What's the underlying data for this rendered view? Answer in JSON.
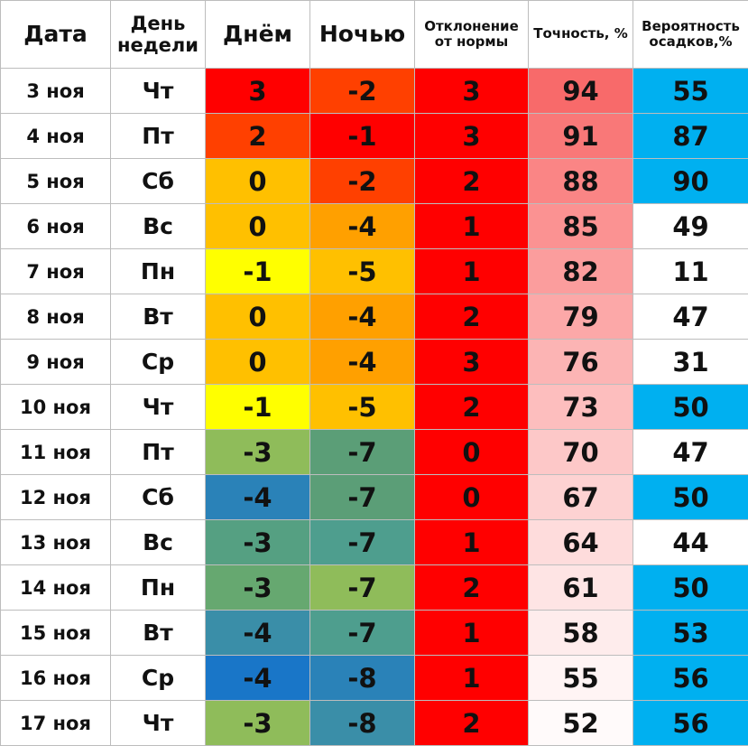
{
  "chart_data": {
    "type": "table",
    "columns": [
      "Дата",
      "День недели",
      "Днём",
      "Ночью",
      "Отклонение от нормы",
      "Точность, %",
      "Вероятность осадков,%"
    ],
    "rows": [
      {
        "date": "3 ноя",
        "day": "Чт",
        "day_temp": "3",
        "night_temp": "-2",
        "deviation": "3",
        "accuracy": "94",
        "precip": "55",
        "colors": {
          "day_temp": "#ff0000",
          "night_temp": "#ff4000",
          "deviation": "#ff0000",
          "accuracy": "#f86a6a",
          "precip": "#00b0f0"
        }
      },
      {
        "date": "4 ноя",
        "day": "Пт",
        "day_temp": "2",
        "night_temp": "-1",
        "deviation": "3",
        "accuracy": "91",
        "precip": "87",
        "colors": {
          "day_temp": "#ff4000",
          "night_temp": "#ff0000",
          "deviation": "#ff0000",
          "accuracy": "#f97878",
          "precip": "#00b0f0"
        }
      },
      {
        "date": "5 ноя",
        "day": "Сб",
        "day_temp": "0",
        "night_temp": "-2",
        "deviation": "2",
        "accuracy": "88",
        "precip": "90",
        "colors": {
          "day_temp": "#ffc000",
          "night_temp": "#ff4000",
          "deviation": "#ff0000",
          "accuracy": "#fa8585",
          "precip": "#00b0f0"
        }
      },
      {
        "date": "6 ноя",
        "day": "Вс",
        "day_temp": "0",
        "night_temp": "-4",
        "deviation": "1",
        "accuracy": "85",
        "precip": "49",
        "colors": {
          "day_temp": "#ffc000",
          "night_temp": "#ffa000",
          "deviation": "#ff0000",
          "accuracy": "#fb9292",
          "precip": "#ffffff"
        }
      },
      {
        "date": "7 ноя",
        "day": "Пн",
        "day_temp": "-1",
        "night_temp": "-5",
        "deviation": "1",
        "accuracy": "82",
        "precip": "11",
        "colors": {
          "day_temp": "#ffff00",
          "night_temp": "#ffc000",
          "deviation": "#ff0000",
          "accuracy": "#fb9d9d",
          "precip": "#ffffff"
        }
      },
      {
        "date": "8 ноя",
        "day": "Вт",
        "day_temp": "0",
        "night_temp": "-4",
        "deviation": "2",
        "accuracy": "79",
        "precip": "47",
        "colors": {
          "day_temp": "#ffc000",
          "night_temp": "#ffa000",
          "deviation": "#ff0000",
          "accuracy": "#fca8a8",
          "precip": "#ffffff"
        }
      },
      {
        "date": "9 ноя",
        "day": "Ср",
        "day_temp": "0",
        "night_temp": "-4",
        "deviation": "3",
        "accuracy": "76",
        "precip": "31",
        "colors": {
          "day_temp": "#ffc000",
          "night_temp": "#ffa000",
          "deviation": "#ff0000",
          "accuracy": "#fcb4b4",
          "precip": "#ffffff"
        }
      },
      {
        "date": "10 ноя",
        "day": "Чт",
        "day_temp": "-1",
        "night_temp": "-5",
        "deviation": "2",
        "accuracy": "73",
        "precip": "50",
        "colors": {
          "day_temp": "#ffff00",
          "night_temp": "#ffc000",
          "deviation": "#ff0000",
          "accuracy": "#fdbebe",
          "precip": "#00b0f0"
        }
      },
      {
        "date": "11 ноя",
        "day": "Пт",
        "day_temp": "-3",
        "night_temp": "-7",
        "deviation": "0",
        "accuracy": "70",
        "precip": "47",
        "colors": {
          "day_temp": "#8fbc5a",
          "night_temp": "#5b9e77",
          "deviation": "#ff0000",
          "accuracy": "#fdc8c8",
          "precip": "#ffffff"
        }
      },
      {
        "date": "12 ноя",
        "day": "Сб",
        "day_temp": "-4",
        "night_temp": "-7",
        "deviation": "0",
        "accuracy": "67",
        "precip": "50",
        "colors": {
          "day_temp": "#2a82b8",
          "night_temp": "#5b9e77",
          "deviation": "#ff0000",
          "accuracy": "#fdd2d2",
          "precip": "#00b0f0"
        }
      },
      {
        "date": "13 ноя",
        "day": "Вс",
        "day_temp": "-3",
        "night_temp": "-7",
        "deviation": "1",
        "accuracy": "64",
        "precip": "44",
        "colors": {
          "day_temp": "#55a082",
          "night_temp": "#4e9e8e",
          "deviation": "#ff0000",
          "accuracy": "#fedcdc",
          "precip": "#ffffff"
        }
      },
      {
        "date": "14 ноя",
        "day": "Пн",
        "day_temp": "-3",
        "night_temp": "-7",
        "deviation": "2",
        "accuracy": "61",
        "precip": "50",
        "colors": {
          "day_temp": "#66a870",
          "night_temp": "#8fbc5a",
          "deviation": "#ff0000",
          "accuracy": "#fee4e4",
          "precip": "#00b0f0"
        }
      },
      {
        "date": "15 ноя",
        "day": "Вт",
        "day_temp": "-4",
        "night_temp": "-7",
        "deviation": "1",
        "accuracy": "58",
        "precip": "53",
        "colors": {
          "day_temp": "#3a8ea8",
          "night_temp": "#4e9e8e",
          "deviation": "#ff0000",
          "accuracy": "#feecec",
          "precip": "#00b0f0"
        }
      },
      {
        "date": "16 ноя",
        "day": "Ср",
        "day_temp": "-4",
        "night_temp": "-8",
        "deviation": "1",
        "accuracy": "55",
        "precip": "56",
        "colors": {
          "day_temp": "#1976c8",
          "night_temp": "#2a82b8",
          "deviation": "#ff0000",
          "accuracy": "#fff4f4",
          "precip": "#00b0f0"
        }
      },
      {
        "date": "17 ноя",
        "day": "Чт",
        "day_temp": "-3",
        "night_temp": "-8",
        "deviation": "2",
        "accuracy": "52",
        "precip": "56",
        "colors": {
          "day_temp": "#8fbc5a",
          "night_temp": "#3a8ea8",
          "deviation": "#ff0000",
          "accuracy": "#fffafa",
          "precip": "#00b0f0"
        }
      }
    ]
  }
}
